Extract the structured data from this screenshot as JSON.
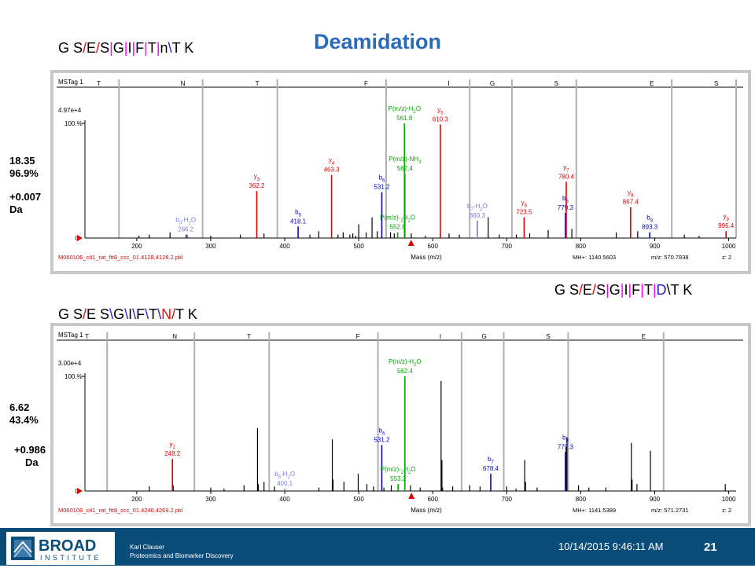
{
  "title": "Deamidation",
  "sequences": {
    "top": [
      [
        "G S",
        "#000"
      ],
      [
        "/",
        "#ff0000"
      ],
      [
        "E",
        "#000"
      ],
      [
        "/",
        "#ff0000"
      ],
      [
        "S",
        "#000"
      ],
      [
        "|",
        "#ff00ff"
      ],
      [
        "G",
        "#000"
      ],
      [
        "|",
        "#ff00ff"
      ],
      [
        "I",
        "#000"
      ],
      [
        "|",
        "#ff00ff"
      ],
      [
        "F",
        "#000"
      ],
      [
        "|",
        "#ff00ff"
      ],
      [
        "T",
        "#000"
      ],
      [
        "|",
        "#ff00ff"
      ],
      [
        "n",
        "#000"
      ],
      [
        "\\",
        "#2222cc"
      ],
      [
        "T K",
        "#000"
      ]
    ],
    "middle": [
      [
        "G S",
        "#000"
      ],
      [
        "/",
        "#ff0000"
      ],
      [
        "E",
        "#000"
      ],
      [
        "/",
        "#ff0000"
      ],
      [
        "S",
        "#000"
      ],
      [
        "|",
        "#ff00ff"
      ],
      [
        "G",
        "#000"
      ],
      [
        "|",
        "#ff00ff"
      ],
      [
        "I",
        "#000"
      ],
      [
        "|",
        "#ff00ff"
      ],
      [
        "F",
        "#000"
      ],
      [
        "|",
        "#ff00ff"
      ],
      [
        "T",
        "#000"
      ],
      [
        "|",
        "#ff00ff"
      ],
      [
        "D",
        "#2222cc"
      ],
      [
        "\\",
        "#000"
      ],
      [
        "T K",
        "#000"
      ]
    ],
    "bottom": [
      [
        "G S",
        "#000"
      ],
      [
        "/",
        "#ff0000"
      ],
      [
        "E S",
        "#000"
      ],
      [
        "\\",
        "#2222cc"
      ],
      [
        "G",
        "#000"
      ],
      [
        "\\",
        "#2222cc"
      ],
      [
        "I",
        "#000"
      ],
      [
        "\\",
        "#2222cc"
      ],
      [
        "F",
        "#000"
      ],
      [
        "\\",
        "#2222cc"
      ],
      [
        "T",
        "#000"
      ],
      [
        "\\",
        "#2222cc"
      ],
      [
        "N",
        "#ff0000"
      ],
      [
        "/",
        "#ff0000"
      ],
      [
        "T K",
        "#000"
      ]
    ]
  },
  "stats": {
    "top_score": "18.35",
    "top_pct": "96.9%",
    "top_delta": "+0.007",
    "top_unit": "Da",
    "bottom_score": "6.62",
    "bottom_pct": "43.4%",
    "bottom_delta": "+0.986",
    "bottom_unit": "Da"
  },
  "colors": {
    "y_ion": "#dd0000",
    "b_ion": "#0000cc",
    "b_ion_light": "#7b7bdd",
    "neutral_loss": "#00aa00",
    "residue_line": "#b0b0b0",
    "footer": "#0a4d7a"
  },
  "chart_data": [
    {
      "type": "bar",
      "tag": "MSTag 1",
      "max_label": "4.97e+4",
      "pct_label": "100.%",
      "xlabel": "Mass (m/z)",
      "xlim": [
        140,
        1010
      ],
      "x_ticks": [
        200,
        300,
        400,
        500,
        600,
        700,
        800,
        900,
        1000
      ],
      "file": "M060106_c41_rat_ftt8_ccc_01.4128.4128.2.pkl",
      "mh": "MH+: 1140.5603",
      "mz": "m/z: 570.7838",
      "z": "z: 2",
      "residues": [
        {
          "aa": "T",
          "x": 176
        },
        {
          "aa": "N",
          "x": 289
        },
        {
          "aa": "T",
          "x": 390
        },
        {
          "aa": "F",
          "x": 537
        },
        {
          "aa": "I",
          "x": 650
        },
        {
          "aa": "G",
          "x": 707
        },
        {
          "aa": "S",
          "x": 794
        },
        {
          "aa": "E",
          "x": 923
        },
        {
          "aa": "S",
          "x": 1010
        }
      ],
      "peaks": [
        {
          "x": 203,
          "y": 2
        },
        {
          "x": 217,
          "y": 3
        },
        {
          "x": 245,
          "y": 5
        },
        {
          "x": 268,
          "y": 3
        },
        {
          "x": 300,
          "y": 2
        },
        {
          "x": 340,
          "y": 3
        },
        {
          "x": 372,
          "y": 4
        },
        {
          "x": 434,
          "y": 3
        },
        {
          "x": 446,
          "y": 6
        },
        {
          "x": 472,
          "y": 3
        },
        {
          "x": 479,
          "y": 5
        },
        {
          "x": 488,
          "y": 3
        },
        {
          "x": 492,
          "y": 4
        },
        {
          "x": 496,
          "y": 2
        },
        {
          "x": 500,
          "y": 12
        },
        {
          "x": 510,
          "y": 5
        },
        {
          "x": 518,
          "y": 18
        },
        {
          "x": 525,
          "y": 6
        },
        {
          "x": 543,
          "y": 5
        },
        {
          "x": 548,
          "y": 4
        },
        {
          "x": 571,
          "y": 4
        },
        {
          "x": 590,
          "y": 2
        },
        {
          "x": 622,
          "y": 4
        },
        {
          "x": 636,
          "y": 3
        },
        {
          "x": 675,
          "y": 18
        },
        {
          "x": 690,
          "y": 3
        },
        {
          "x": 713,
          "y": 3
        },
        {
          "x": 731,
          "y": 4
        },
        {
          "x": 756,
          "y": 7
        },
        {
          "x": 788,
          "y": 8
        },
        {
          "x": 848,
          "y": 5
        },
        {
          "x": 877,
          "y": 6
        },
        {
          "x": 940,
          "y": 3
        },
        {
          "x": 960,
          "y": 2
        }
      ],
      "ions": [
        {
          "x": 266.2,
          "y": 3,
          "color": "#7b7bdd",
          "label": "b3-H2O",
          "value": "266.2"
        },
        {
          "x": 362.2,
          "y": 41,
          "color": "#dd0000",
          "label": "y3",
          "value": "362.2"
        },
        {
          "x": 418.1,
          "y": 10,
          "color": "#0000cc",
          "label": "b5",
          "value": "418.1"
        },
        {
          "x": 463.3,
          "y": 55,
          "color": "#dd0000",
          "label": "y4",
          "value": "463.3"
        },
        {
          "x": 531.2,
          "y": 40,
          "color": "#0000cc",
          "label": "b6",
          "value": "531.2"
        },
        {
          "x": 552.6,
          "y": 5,
          "color": "#00aa00",
          "label": "P(m/z)-2H2O",
          "value": "552.6"
        },
        {
          "x": 561.8,
          "y": 100,
          "color": "#00aa00",
          "label": "P(m/z)-H2O",
          "value": "561.8"
        },
        {
          "x": 562.4,
          "y": 56,
          "color": "#00aa00",
          "label": "P(m/z)-NH3",
          "value": "562.4"
        },
        {
          "x": 610.3,
          "y": 99,
          "color": "#dd0000",
          "label": "y5",
          "value": "610.3"
        },
        {
          "x": 660.3,
          "y": 15,
          "color": "#7b7bdd",
          "label": "b7-H2O",
          "value": "660.3"
        },
        {
          "x": 723.5,
          "y": 18,
          "color": "#dd0000",
          "label": "y6",
          "value": "723.5"
        },
        {
          "x": 779.3,
          "y": 22,
          "color": "#0000cc",
          "label": "b8",
          "value": "779.3"
        },
        {
          "x": 780.4,
          "y": 49,
          "color": "#dd0000",
          "label": "y7",
          "value": "780.4"
        },
        {
          "x": 867.4,
          "y": 27,
          "color": "#dd0000",
          "label": "y8",
          "value": "867.4"
        },
        {
          "x": 893.3,
          "y": 5,
          "color": "#0000cc",
          "label": "b9",
          "value": "893.3"
        },
        {
          "x": 996.4,
          "y": 6,
          "color": "#dd0000",
          "label": "y9",
          "value": "996.4"
        }
      ]
    },
    {
      "type": "bar",
      "tag": "MSTag 1",
      "max_label": "3.00e+4",
      "pct_label": "100.%",
      "xlabel": "Mass (m/z)",
      "xlim": [
        140,
        1010
      ],
      "x_ticks": [
        200,
        300,
        400,
        500,
        600,
        700,
        800,
        900,
        1000
      ],
      "file": "M060106_c41_rat_ftt8_ccc_01.4240.4269.2.pkl",
      "mh": "MH+: 1141.5389",
      "mz": "m/z: 571.2731",
      "z": "z: 2",
      "residues": [
        {
          "aa": "T",
          "x": 160
        },
        {
          "aa": "N",
          "x": 278
        },
        {
          "aa": "T",
          "x": 379
        },
        {
          "aa": "F",
          "x": 526
        },
        {
          "aa": "I",
          "x": 639
        },
        {
          "aa": "G",
          "x": 696
        },
        {
          "aa": "S",
          "x": 783
        },
        {
          "aa": "E",
          "x": 912
        }
      ],
      "peaks": [
        {
          "x": 217,
          "y": 4
        },
        {
          "x": 249.3,
          "y": 5
        },
        {
          "x": 300,
          "y": 3
        },
        {
          "x": 318,
          "y": 2
        },
        {
          "x": 345,
          "y": 5
        },
        {
          "x": 363.2,
          "y": 55
        },
        {
          "x": 364.3,
          "y": 6
        },
        {
          "x": 372,
          "y": 8
        },
        {
          "x": 386,
          "y": 4
        },
        {
          "x": 446.2,
          "y": 3
        },
        {
          "x": 464.3,
          "y": 45
        },
        {
          "x": 465.3,
          "y": 10
        },
        {
          "x": 480,
          "y": 8
        },
        {
          "x": 499.3,
          "y": 15
        },
        {
          "x": 511,
          "y": 6
        },
        {
          "x": 520,
          "y": 4
        },
        {
          "x": 534,
          "y": 3
        },
        {
          "x": 544,
          "y": 5
        },
        {
          "x": 570,
          "y": 5
        },
        {
          "x": 583,
          "y": 3
        },
        {
          "x": 611.3,
          "y": 96
        },
        {
          "x": 612.4,
          "y": 27
        },
        {
          "x": 613.3,
          "y": 3
        },
        {
          "x": 627,
          "y": 4
        },
        {
          "x": 650,
          "y": 5
        },
        {
          "x": 664,
          "y": 4
        },
        {
          "x": 700,
          "y": 4
        },
        {
          "x": 712.6,
          "y": 2
        },
        {
          "x": 724.3,
          "y": 27
        },
        {
          "x": 725.4,
          "y": 8
        },
        {
          "x": 741,
          "y": 3
        },
        {
          "x": 781.4,
          "y": 47
        },
        {
          "x": 780.2,
          "y": 38
        },
        {
          "x": 797,
          "y": 5
        },
        {
          "x": 811,
          "y": 3
        },
        {
          "x": 834,
          "y": 3
        },
        {
          "x": 868.4,
          "y": 42
        },
        {
          "x": 869.4,
          "y": 10
        },
        {
          "x": 876,
          "y": 6
        },
        {
          "x": 894.2,
          "y": 35
        },
        {
          "x": 995.3,
          "y": 6
        }
      ],
      "ions": [
        {
          "x": 248.2,
          "y": 28,
          "color": "#dd0000",
          "label": "y2",
          "value": "248.2"
        },
        {
          "x": 400.1,
          "y": 2,
          "color": "#7b7bdd",
          "label": "b5-H2O",
          "value": "400.1"
        },
        {
          "x": 531.2,
          "y": 40,
          "color": "#0000cc",
          "label": "b6",
          "value": "531.2"
        },
        {
          "x": 553.2,
          "y": 6,
          "color": "#00aa00",
          "label": "P(m/z)-2H2O",
          "value": "553.2"
        },
        {
          "x": 562.4,
          "y": 100,
          "color": "#00aa00",
          "label": "P(m/z)-H2O",
          "value": "562.4"
        },
        {
          "x": 678.4,
          "y": 15,
          "color": "#0000cc",
          "label": "b7",
          "value": "678.4"
        },
        {
          "x": 779.3,
          "y": 34,
          "color": "#0000cc",
          "label": "b8",
          "value": "779.3"
        }
      ]
    }
  ],
  "footer": {
    "logo_top": "BROAD",
    "logo_bottom": "INSTITUTE",
    "author": "Karl Clauser",
    "dept": "Proteomics and Biomarker Discovery",
    "datetime": "10/14/2015 9:46:11 AM",
    "page": "21"
  }
}
